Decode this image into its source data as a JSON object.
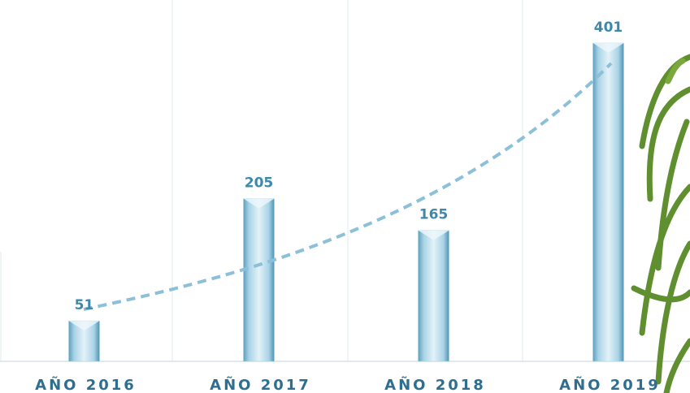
{
  "chart_data": {
    "type": "bar",
    "categories": [
      "AÑO 2016",
      "AÑO 2017",
      "AÑO 2018",
      "AÑO 2019"
    ],
    "values": [
      51,
      205,
      165,
      401
    ],
    "color": "#a9d3e6"
  }
}
